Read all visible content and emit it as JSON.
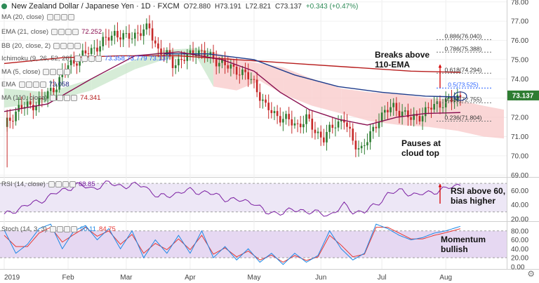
{
  "header": {
    "title": "New Zealand Dollar / Japanese Yen · 1D · FXCM",
    "open": "O72.880",
    "high": "H73.191",
    "low": "L72.821",
    "close": "C73.137",
    "change": "+0.343 (+0.47%)"
  },
  "indicators": [
    {
      "label": "MA (20, close)",
      "value": "",
      "color": "#2962ff"
    },
    {
      "label": "EMA (21, close)",
      "value": "72.252",
      "color": "#880e4f"
    },
    {
      "label": "BB (20, close, 2)",
      "value": "",
      "color": "#2962ff"
    },
    {
      "label": "Ichimoku (9, 26, 52, 26)",
      "value": "73.358   73.779   73.137",
      "color": "#2962ff"
    },
    {
      "label": "MA (5, close)",
      "value": "",
      "color": "#2962ff"
    },
    {
      "label": "EMA",
      "value": "73.058",
      "color": "#1a237e"
    },
    {
      "label": "MA (110, close)",
      "value": "74.341",
      "color": "#b71c1c"
    }
  ],
  "annotations": {
    "breaks": [
      "Breaks above",
      "110-EMA"
    ],
    "pauses": [
      "Pauses at",
      "cloud top"
    ],
    "rsi": [
      "RSI above 60,",
      "bias higher"
    ],
    "momentum": [
      "Momentum",
      "bullish"
    ]
  },
  "price_label": "73.137",
  "rsi_panel": {
    "label": "RSI (14, close)",
    "value": "68.85"
  },
  "stoch_panel": {
    "label": "Stoch (14, 3, 3)",
    "k": "90.11",
    "d": "84.75"
  },
  "colors": {
    "up": "#2e7d32",
    "down": "#c62828",
    "ema21": "#880e4f",
    "ema110": "#b71c1c",
    "ma": "#1e3a8a",
    "cloud_green": "#c8e6c9",
    "cloud_red": "#f8c8c8",
    "rsi_band": "#ede7f6",
    "rsi_line": "#7b1fa2",
    "stoch_band": "#e6d8f2",
    "stoch_k": "#1e88e5",
    "stoch_d": "#e53935",
    "fib": "#555555",
    "price_badge": "#2e7d32"
  },
  "chart_data": [
    {
      "type": "candlestick",
      "title": "New Zealand Dollar / Japanese Yen · 1D · FXCM",
      "x_ticks": [
        "2019",
        "Feb",
        "Mar",
        "Apr",
        "May",
        "Jun",
        "Jul",
        "Aug"
      ],
      "x_tick_index": [
        0,
        22,
        42,
        64,
        86,
        109,
        130,
        152
      ],
      "y_ticks": [
        69.0,
        70.0,
        71.0,
        72.0,
        73.0,
        74.0,
        75.0,
        76.0,
        77.0,
        78.0
      ],
      "ylim": [
        68.9,
        78.1
      ],
      "n_bars": 172,
      "close_path": [
        [
          0,
          71.5
        ],
        [
          2,
          71.9
        ],
        [
          5,
          72.5
        ],
        [
          9,
          72.6
        ],
        [
          13,
          72.9
        ],
        [
          18,
          73.7
        ],
        [
          22,
          74.7
        ],
        [
          26,
          75.1
        ],
        [
          31,
          75.6
        ],
        [
          35,
          76.0
        ],
        [
          38,
          76.4
        ],
        [
          42,
          76.1
        ],
        [
          46,
          76.4
        ],
        [
          50,
          76.6
        ],
        [
          53,
          75.5
        ],
        [
          56,
          75.2
        ],
        [
          58,
          74.8
        ],
        [
          61,
          75.0
        ],
        [
          63,
          75.1
        ],
        [
          66,
          75.5
        ],
        [
          70,
          75.2
        ],
        [
          74,
          74.9
        ],
        [
          77,
          74.6
        ],
        [
          80,
          74.5
        ],
        [
          83,
          74.2
        ],
        [
          86,
          73.8
        ],
        [
          90,
          72.5
        ],
        [
          94,
          72.1
        ],
        [
          98,
          71.8
        ],
        [
          101,
          71.6
        ],
        [
          104,
          71.9
        ],
        [
          107,
          71.3
        ],
        [
          110,
          70.9
        ],
        [
          114,
          71.7
        ],
        [
          117,
          71.9
        ],
        [
          120,
          70.7
        ],
        [
          123,
          70.4
        ],
        [
          125,
          70.8
        ],
        [
          127,
          71.3
        ],
        [
          129,
          72.0
        ],
        [
          131,
          72.3
        ],
        [
          134,
          72.5
        ],
        [
          137,
          72.3
        ],
        [
          140,
          71.9
        ],
        [
          143,
          72.1
        ],
        [
          146,
          72.4
        ],
        [
          149,
          72.7
        ],
        [
          152,
          72.8
        ],
        [
          155,
          72.9
        ],
        [
          157,
          73.14
        ]
      ],
      "fib_levels": [
        {
          "label": "0.886(76.040)",
          "value": 76.04
        },
        {
          "label": "0.786(75.388)",
          "value": 75.388
        },
        {
          "label": "0.618(74.294)",
          "value": 74.294
        },
        {
          "label": "0.5(73.525)",
          "value": 73.525
        },
        {
          "label": "0.382(72.755)",
          "value": 72.755
        },
        {
          "label": "0.236(71.804)",
          "value": 71.804
        }
      ],
      "ema21_path": [
        [
          0,
          72.3
        ],
        [
          15,
          72.7
        ],
        [
          30,
          74.0
        ],
        [
          45,
          75.2
        ],
        [
          60,
          75.4
        ],
        [
          75,
          75.0
        ],
        [
          86,
          74.4
        ],
        [
          95,
          73.3
        ],
        [
          105,
          72.4
        ],
        [
          115,
          71.9
        ],
        [
          125,
          71.6
        ],
        [
          135,
          72.0
        ],
        [
          145,
          72.2
        ],
        [
          157,
          72.25
        ]
      ],
      "ema110_path": [
        [
          0,
          74.8
        ],
        [
          20,
          75.1
        ],
        [
          40,
          75.2
        ],
        [
          60,
          75.2
        ],
        [
          80,
          75.0
        ],
        [
          100,
          74.8
        ],
        [
          120,
          74.6
        ],
        [
          140,
          74.4
        ],
        [
          157,
          74.34
        ]
      ],
      "ma_path": [
        [
          55,
          75.3
        ],
        [
          70,
          75.3
        ],
        [
          86,
          75.0
        ],
        [
          100,
          74.2
        ],
        [
          115,
          73.6
        ],
        [
          130,
          73.3
        ],
        [
          145,
          73.1
        ],
        [
          157,
          73.06
        ]
      ],
      "cloud": [
        [
          0,
          73.5,
          72.5
        ],
        [
          15,
          73.3,
          72.8
        ],
        [
          30,
          74.0,
          73.4
        ],
        [
          45,
          75.0,
          74.5
        ],
        [
          55,
          75.5,
          75.0
        ],
        [
          66,
          75.6,
          75.2
        ],
        [
          72,
          75.4,
          73.6
        ],
        [
          80,
          75.0,
          73.4
        ],
        [
          88,
          74.8,
          73.9
        ],
        [
          96,
          74.6,
          73.2
        ],
        [
          106,
          74.0,
          72.6
        ],
        [
          116,
          73.5,
          72.2
        ],
        [
          126,
          73.3,
          71.8
        ],
        [
          136,
          73.2,
          71.6
        ],
        [
          146,
          73.0,
          71.5
        ],
        [
          156,
          72.9,
          71.3
        ],
        [
          165,
          72.6,
          71.0
        ],
        [
          172,
          72.4,
          70.9
        ]
      ]
    },
    {
      "type": "line",
      "title": "RSI (14, close)",
      "y_ticks": [
        20.0,
        40.0,
        60.0
      ],
      "ylim": [
        17,
        78
      ],
      "band": [
        30,
        70
      ],
      "values_path": [
        [
          0,
          25
        ],
        [
          5,
          35
        ],
        [
          12,
          45
        ],
        [
          20,
          60
        ],
        [
          25,
          68
        ],
        [
          30,
          63
        ],
        [
          36,
          70
        ],
        [
          42,
          66
        ],
        [
          48,
          68
        ],
        [
          53,
          50
        ],
        [
          58,
          55
        ],
        [
          64,
          60
        ],
        [
          70,
          57
        ],
        [
          76,
          49
        ],
        [
          82,
          45
        ],
        [
          86,
          44
        ],
        [
          90,
          28
        ],
        [
          96,
          30
        ],
        [
          102,
          33
        ],
        [
          108,
          28
        ],
        [
          112,
          26
        ],
        [
          117,
          39
        ],
        [
          120,
          31
        ],
        [
          124,
          30
        ],
        [
          128,
          40
        ],
        [
          132,
          55
        ],
        [
          137,
          60
        ],
        [
          142,
          53
        ],
        [
          147,
          58
        ],
        [
          152,
          62
        ],
        [
          157,
          68.85
        ]
      ]
    },
    {
      "type": "line",
      "title": "Stoch (14, 3, 3)",
      "y_ticks": [
        0.0,
        20.0,
        40.0,
        60.0,
        80.0
      ],
      "ylim": [
        -5,
        100
      ],
      "band": [
        20,
        80
      ],
      "k_path": [
        [
          0,
          82
        ],
        [
          4,
          30
        ],
        [
          8,
          50
        ],
        [
          12,
          85
        ],
        [
          16,
          95
        ],
        [
          20,
          40
        ],
        [
          24,
          80
        ],
        [
          28,
          92
        ],
        [
          32,
          60
        ],
        [
          36,
          85
        ],
        [
          40,
          40
        ],
        [
          44,
          80
        ],
        [
          48,
          20
        ],
        [
          52,
          60
        ],
        [
          56,
          30
        ],
        [
          60,
          70
        ],
        [
          64,
          30
        ],
        [
          68,
          80
        ],
        [
          72,
          20
        ],
        [
          76,
          45
        ],
        [
          80,
          15
        ],
        [
          84,
          40
        ],
        [
          88,
          10
        ],
        [
          92,
          30
        ],
        [
          96,
          5
        ],
        [
          100,
          30
        ],
        [
          104,
          10
        ],
        [
          108,
          25
        ],
        [
          112,
          80
        ],
        [
          116,
          40
        ],
        [
          120,
          15
        ],
        [
          124,
          30
        ],
        [
          128,
          95
        ],
        [
          132,
          85
        ],
        [
          136,
          70
        ],
        [
          140,
          60
        ],
        [
          144,
          65
        ],
        [
          148,
          75
        ],
        [
          152,
          80
        ],
        [
          157,
          90.11
        ]
      ],
      "d_path": [
        [
          0,
          70
        ],
        [
          4,
          45
        ],
        [
          8,
          45
        ],
        [
          12,
          75
        ],
        [
          16,
          88
        ],
        [
          20,
          55
        ],
        [
          24,
          72
        ],
        [
          28,
          88
        ],
        [
          32,
          68
        ],
        [
          36,
          80
        ],
        [
          40,
          50
        ],
        [
          44,
          72
        ],
        [
          48,
          30
        ],
        [
          52,
          52
        ],
        [
          56,
          38
        ],
        [
          60,
          62
        ],
        [
          64,
          38
        ],
        [
          68,
          70
        ],
        [
          72,
          28
        ],
        [
          76,
          42
        ],
        [
          80,
          22
        ],
        [
          84,
          35
        ],
        [
          88,
          15
        ],
        [
          92,
          26
        ],
        [
          96,
          10
        ],
        [
          100,
          25
        ],
        [
          104,
          14
        ],
        [
          108,
          22
        ],
        [
          112,
          70
        ],
        [
          116,
          48
        ],
        [
          120,
          22
        ],
        [
          124,
          28
        ],
        [
          128,
          88
        ],
        [
          132,
          88
        ],
        [
          136,
          75
        ],
        [
          140,
          62
        ],
        [
          144,
          62
        ],
        [
          148,
          70
        ],
        [
          152,
          76
        ],
        [
          157,
          84.75
        ]
      ]
    }
  ]
}
